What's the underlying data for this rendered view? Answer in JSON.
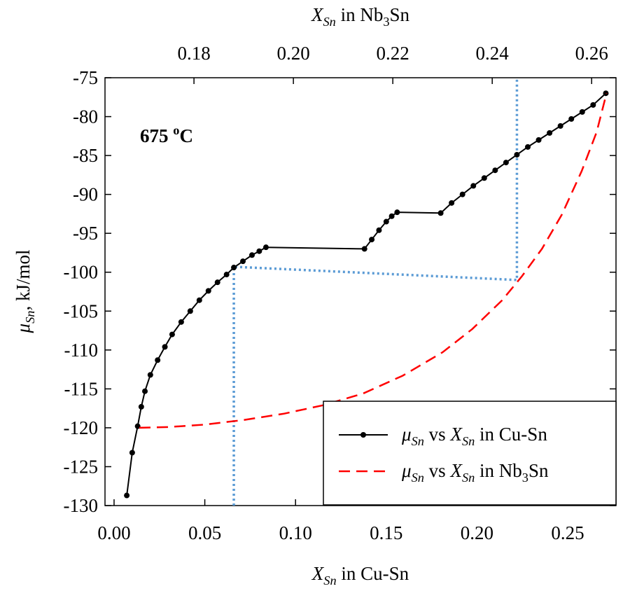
{
  "chart_data": {
    "type": "line",
    "x_label": [
      {
        "text": "X",
        "style": "italic"
      },
      {
        "text": "Sn",
        "style": "sub-italic"
      },
      {
        "text": " in Cu-Sn"
      }
    ],
    "x2_label": [
      {
        "text": "X",
        "style": "italic"
      },
      {
        "text": "Sn",
        "style": "sub-italic"
      },
      {
        "text": " in Nb"
      },
      {
        "text": "3",
        "style": "sub"
      },
      {
        "text": "Sn"
      }
    ],
    "y_label": [
      {
        "text": "μ",
        "style": "italic"
      },
      {
        "text": "Sn",
        "style": "sub-italic"
      },
      {
        "text": ", kJ/mol"
      }
    ],
    "annotation": [
      {
        "text": "675 "
      },
      {
        "text": "o",
        "style": "sup"
      },
      {
        "text": "C"
      }
    ],
    "xlim": [
      -0.005,
      0.2766
    ],
    "xticks": [
      {
        "value": 0,
        "label": "0.00"
      },
      0.05,
      {
        "value": 0.1,
        "label": "0.10"
      },
      0.15,
      {
        "value": 0.2,
        "label": "0.20"
      },
      0.25
    ],
    "x2lim": [
      0.1621,
      0.2649
    ],
    "x2ticks": [
      0.18,
      {
        "value": 0.2,
        "label": "0.20"
      },
      0.22,
      0.24,
      0.26
    ],
    "ylim": [
      -130,
      -75
    ],
    "yticks": [
      -75,
      -80,
      -85,
      -90,
      -95,
      -100,
      -105,
      -110,
      -115,
      -120,
      -125,
      -130
    ],
    "legend": "lower right",
    "series": [
      {
        "name": [
          {
            "text": "μ",
            "style": "italic"
          },
          {
            "text": "Sn",
            "style": "sub-italic"
          },
          {
            "text": " vs "
          },
          {
            "text": "X",
            "style": "italic"
          },
          {
            "text": "Sn",
            "style": "sub-italic"
          },
          {
            "text": " in Cu-Sn"
          }
        ],
        "color": "#000000",
        "marker": true,
        "dash": "solid",
        "x": [
          0.007,
          0.01,
          0.013,
          0.015,
          0.017,
          0.02,
          0.024,
          0.028,
          0.032,
          0.037,
          0.042,
          0.047,
          0.052,
          0.057,
          0.062,
          0.066,
          0.071,
          0.076,
          0.08,
          0.0837,
          0.138,
          0.142,
          0.146,
          0.15,
          0.153,
          0.156,
          0.18,
          0.186,
          0.192,
          0.198,
          0.204,
          0.21,
          0.216,
          0.222,
          0.228,
          0.234,
          0.24,
          0.246,
          0.252,
          0.258,
          0.264,
          0.271
        ],
        "values": [
          -128.7,
          -123.2,
          -119.8,
          -117.3,
          -115.3,
          -113.2,
          -111.3,
          -109.6,
          -108.0,
          -106.4,
          -105.0,
          -103.6,
          -102.4,
          -101.3,
          -100.3,
          -99.4,
          -98.6,
          -97.8,
          -97.3,
          -96.8,
          -97.0,
          -95.8,
          -94.6,
          -93.5,
          -92.8,
          -92.3,
          -92.4,
          -91.1,
          -90.0,
          -88.9,
          -87.9,
          -86.9,
          -85.9,
          -84.9,
          -83.9,
          -83.0,
          -82.1,
          -81.2,
          -80.3,
          -79.4,
          -78.5,
          -77.0
        ]
      },
      {
        "name": [
          {
            "text": "μ",
            "style": "italic"
          },
          {
            "text": "Sn",
            "style": "sub-italic"
          },
          {
            "text": " vs "
          },
          {
            "text": "X",
            "style": "italic"
          },
          {
            "text": "Sn",
            "style": "sub-italic"
          },
          {
            "text": " in Nb"
          },
          {
            "text": "3",
            "style": "sub"
          },
          {
            "text": "Sn"
          }
        ],
        "color": "#ff0000",
        "marker": false,
        "dash": "dashed",
        "axis": "x2",
        "x": [
          0.169,
          0.175,
          0.182,
          0.19,
          0.198,
          0.206,
          0.214,
          0.222,
          0.23,
          0.236,
          0.242,
          0.246,
          0.25,
          0.254,
          0.258,
          0.261,
          0.263
        ],
        "values": [
          -120,
          -119.9,
          -119.6,
          -119.0,
          -118.2,
          -117.1,
          -115.6,
          -113.3,
          -110.3,
          -107.3,
          -103.6,
          -100.5,
          -97.0,
          -92.6,
          -87.0,
          -82.0,
          -77.0
        ]
      }
    ],
    "guides": [
      {
        "color": "#5b9bd5",
        "x": [
          0.066,
          0.066,
          0.222,
          0.222
        ],
        "values": [
          -130,
          -99.3,
          -101,
          -75
        ]
      }
    ]
  }
}
